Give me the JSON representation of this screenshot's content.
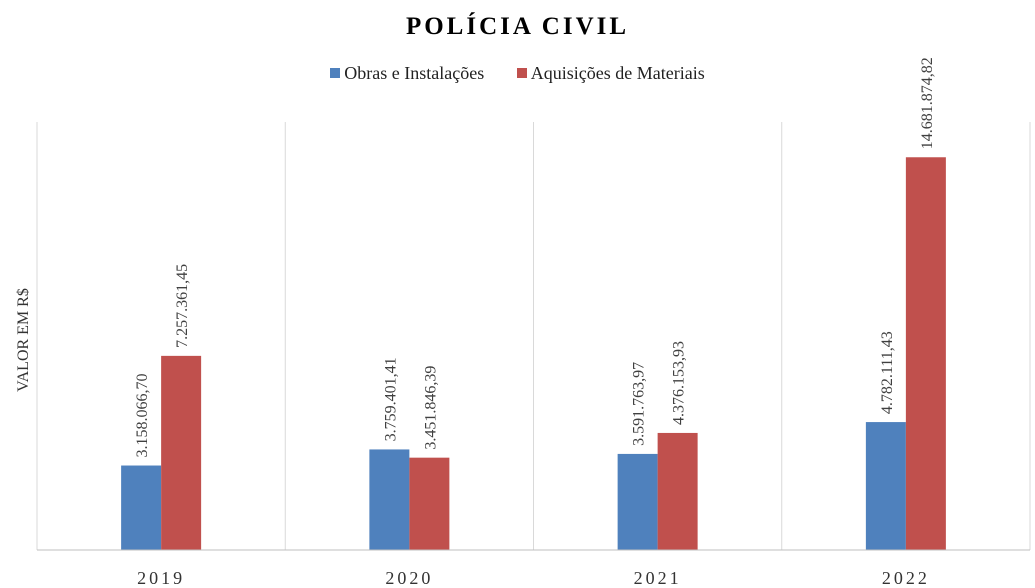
{
  "chart_data": {
    "type": "bar",
    "title": "POLÍCIA CIVIL",
    "xlabel": "",
    "ylabel": "VALOR EM R$",
    "categories": [
      "2019",
      "2020",
      "2021",
      "2022"
    ],
    "series": [
      {
        "name": "Obras e Instalações",
        "color": "#4f81bd",
        "values": [
          3158066.7,
          3759401.41,
          3591763.97,
          4782111.43
        ],
        "labels": [
          "3.158.066,70",
          "3.759.401,41",
          "3.591.763,97",
          "4.782.111,43"
        ]
      },
      {
        "name": "Aquisições de Materiais",
        "color": "#c0504d",
        "values": [
          7257361.45,
          3451846.39,
          4376153.93,
          14681874.82
        ],
        "labels": [
          "7.257.361,45",
          "3.451.846,39",
          "4.376.153,93",
          "14.681.874,82"
        ]
      }
    ],
    "ylim": [
      0,
      16000000
    ],
    "grid": "vertical category separators",
    "legend": "top-center"
  }
}
